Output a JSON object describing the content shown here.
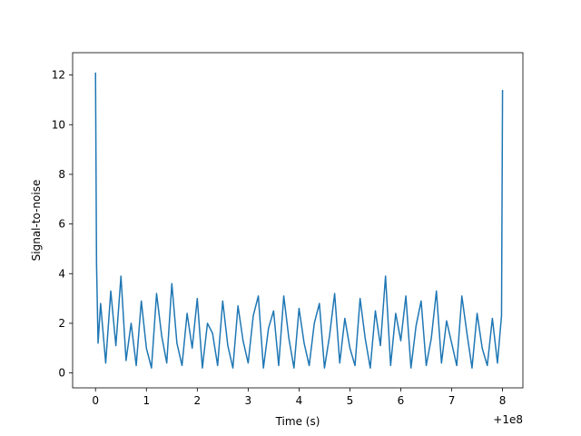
{
  "chart_data": {
    "type": "line",
    "title": "",
    "xlabel": "Time (s)",
    "ylabel": "Signal-to-noise",
    "x_offset_label": "+1e8",
    "xlim": [
      -0.45,
      8.4
    ],
    "ylim": [
      -0.6,
      12.9
    ],
    "xticks": [
      0,
      1,
      2,
      3,
      4,
      5,
      6,
      7,
      8
    ],
    "xtick_labels": [
      "0",
      "1",
      "2",
      "3",
      "4",
      "5",
      "6",
      "7",
      "8"
    ],
    "yticks": [
      0,
      2,
      4,
      6,
      8,
      10,
      12
    ],
    "ytick_labels": [
      "0",
      "2",
      "4",
      "6",
      "8",
      "10",
      "12"
    ],
    "grid": false,
    "series": [
      {
        "color": "#1f77b4",
        "x": [
          0,
          0.02,
          0.05,
          0.1,
          0.2,
          0.3,
          0.4,
          0.5,
          0.6,
          0.7,
          0.8,
          0.9,
          1.0,
          1.1,
          1.2,
          1.3,
          1.4,
          1.5,
          1.6,
          1.7,
          1.8,
          1.9,
          2.0,
          2.1,
          2.2,
          2.3,
          2.4,
          2.5,
          2.6,
          2.7,
          2.8,
          2.9,
          3.0,
          3.1,
          3.2,
          3.3,
          3.4,
          3.5,
          3.6,
          3.7,
          3.8,
          3.9,
          4.0,
          4.1,
          4.2,
          4.3,
          4.4,
          4.5,
          4.6,
          4.7,
          4.8,
          4.9,
          5.0,
          5.1,
          5.2,
          5.3,
          5.4,
          5.5,
          5.6,
          5.7,
          5.8,
          5.9,
          6.0,
          6.1,
          6.2,
          6.3,
          6.4,
          6.5,
          6.6,
          6.7,
          6.8,
          6.9,
          7.0,
          7.1,
          7.2,
          7.3,
          7.4,
          7.5,
          7.6,
          7.7,
          7.8,
          7.9,
          7.95,
          7.98,
          8.0
        ],
        "y": [
          12.1,
          4.4,
          1.2,
          2.8,
          0.4,
          3.3,
          1.1,
          3.9,
          0.5,
          2.0,
          0.3,
          2.9,
          1.0,
          0.2,
          3.2,
          1.5,
          0.4,
          3.6,
          1.2,
          0.3,
          2.4,
          1.0,
          3.0,
          0.2,
          2.0,
          1.6,
          0.3,
          2.9,
          1.1,
          0.2,
          2.7,
          1.3,
          0.4,
          2.3,
          3.1,
          0.2,
          1.8,
          2.5,
          0.3,
          3.1,
          1.4,
          0.2,
          2.6,
          1.2,
          0.3,
          2.0,
          2.8,
          0.2,
          1.5,
          3.2,
          0.4,
          2.2,
          1.0,
          0.3,
          3.0,
          1.4,
          0.2,
          2.5,
          1.1,
          3.9,
          0.3,
          2.4,
          1.3,
          3.1,
          0.2,
          1.9,
          2.9,
          0.3,
          1.4,
          3.3,
          0.4,
          2.1,
          1.2,
          0.3,
          3.1,
          1.6,
          0.2,
          2.4,
          1.0,
          0.3,
          2.2,
          0.4,
          1.6,
          2.3,
          11.4
        ]
      }
    ]
  }
}
